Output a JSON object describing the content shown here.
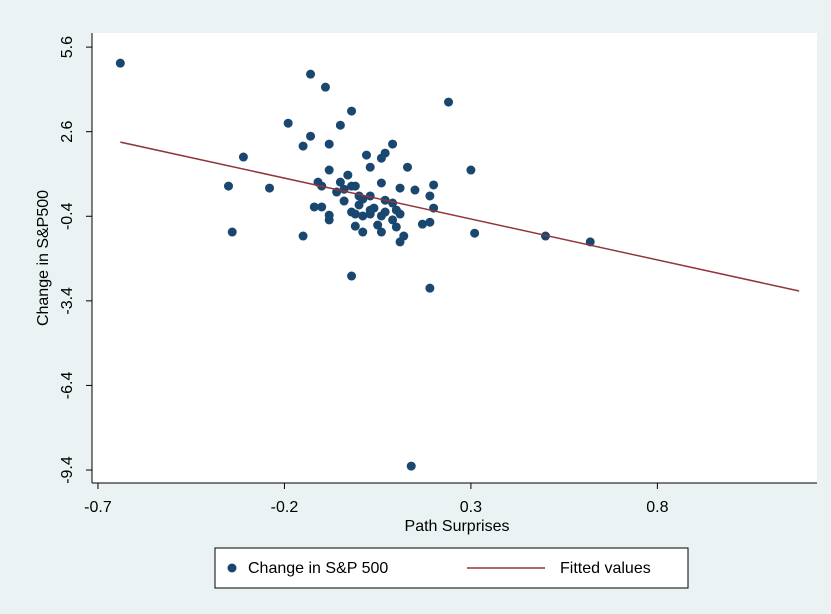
{
  "chart_data": {
    "type": "scatter",
    "xlabel": "Path Surprises",
    "ylabel": "Change in S&P500",
    "xlim": [
      -0.716,
      1.228
    ],
    "ylim": [
      -9.86,
      6.1
    ],
    "xticks": [
      -0.7,
      -0.2,
      0.3,
      0.8
    ],
    "yticks": [
      5.6,
      2.6,
      -0.4,
      -3.4,
      -6.4,
      -9.4
    ],
    "grid": false,
    "legend": "bottom",
    "series": [
      {
        "name": "Change in S&P 500",
        "type": "scatter",
        "color": "#1a476f",
        "x": [
          -0.64,
          -0.13,
          -0.09,
          0.24,
          -0.02,
          -0.19,
          -0.05,
          -0.13,
          -0.15,
          -0.08,
          0.09,
          -0.31,
          0.02,
          0.07,
          0.06,
          0.13,
          0.3,
          -0.08,
          -0.35,
          -0.24,
          -0.34,
          -0.11,
          -0.1,
          -0.03,
          0.03,
          -0.05,
          -0.02,
          -0.01,
          -0.04,
          -0.06,
          0.06,
          0.11,
          0.15,
          0.2,
          0.19,
          -0.04,
          0.0,
          0.01,
          0.03,
          0.0,
          -0.02,
          0.03,
          0.07,
          0.09,
          0.1,
          0.07,
          0.06,
          -0.01,
          -0.12,
          -0.1,
          -0.08,
          -0.08,
          0.01,
          0.03,
          0.04,
          0.11,
          0.2,
          -0.01,
          0.01,
          0.05,
          0.06,
          0.09,
          0.1,
          0.17,
          0.19,
          -0.15,
          0.12,
          0.11,
          0.31,
          0.5,
          0.62,
          -0.02,
          0.19,
          0.14
        ],
        "values": [
          5.03,
          4.64,
          4.18,
          3.65,
          3.33,
          2.9,
          2.83,
          2.44,
          2.09,
          2.16,
          2.16,
          1.7,
          1.77,
          1.84,
          1.66,
          1.34,
          1.24,
          1.24,
          0.67,
          0.6,
          -0.96,
          0.81,
          0.67,
          1.06,
          1.34,
          0.81,
          0.67,
          0.67,
          0.56,
          0.46,
          0.78,
          0.6,
          0.53,
          0.71,
          0.32,
          0.14,
          0.32,
          0.21,
          0.32,
          0.0,
          -0.25,
          -0.18,
          0.17,
          0.07,
          -0.18,
          -0.25,
          -0.39,
          -0.32,
          -0.07,
          -0.07,
          -0.36,
          -0.53,
          -0.39,
          -0.32,
          -0.11,
          -0.32,
          -0.11,
          -0.75,
          -0.96,
          -0.71,
          -0.96,
          -0.53,
          -0.78,
          -0.68,
          -0.61,
          -1.1,
          -1.1,
          -1.31,
          -1.0,
          -1.1,
          -1.31,
          -2.52,
          -2.95,
          -9.26
        ]
      },
      {
        "name": "Fitted values",
        "type": "line",
        "color": "#90353b",
        "x": [
          -0.64,
          1.18
        ],
        "values": [
          2.23,
          -3.05
        ]
      }
    ]
  }
}
